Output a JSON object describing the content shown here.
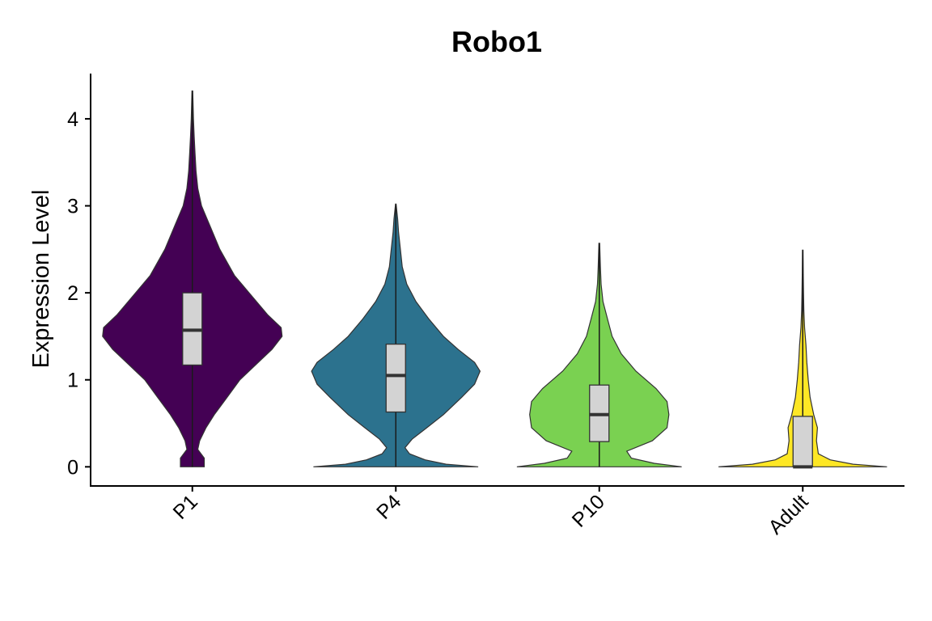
{
  "chart_data": {
    "type": "violin",
    "title": "Robo1",
    "xlabel": "",
    "ylabel": "Expression Level",
    "ylim": [
      -0.22,
      4.52
    ],
    "yticks": [
      0,
      1,
      2,
      3,
      4
    ],
    "categories": [
      "P1",
      "P4",
      "P10",
      "Adult"
    ],
    "grid": false,
    "legend": "none",
    "series": [
      {
        "category": "P1",
        "color": "#440154",
        "max": 4.32,
        "box": {
          "q1": 1.17,
          "median": 1.57,
          "q3": 2.0
        },
        "density": [
          [
            0,
            0.13
          ],
          [
            0.1,
            0.13
          ],
          [
            0.2,
            0.06
          ],
          [
            0.3,
            0.08
          ],
          [
            0.45,
            0.15
          ],
          [
            0.6,
            0.24
          ],
          [
            0.8,
            0.38
          ],
          [
            1.0,
            0.52
          ],
          [
            1.2,
            0.72
          ],
          [
            1.35,
            0.87
          ],
          [
            1.5,
            0.98
          ],
          [
            1.6,
            0.97
          ],
          [
            1.75,
            0.82
          ],
          [
            2.0,
            0.62
          ],
          [
            2.2,
            0.46
          ],
          [
            2.5,
            0.3
          ],
          [
            2.75,
            0.2
          ],
          [
            3.0,
            0.1
          ],
          [
            3.2,
            0.06
          ],
          [
            3.4,
            0.04
          ],
          [
            3.6,
            0.03
          ],
          [
            3.8,
            0.02
          ],
          [
            4.0,
            0.012
          ],
          [
            4.32,
            0.004
          ]
        ]
      },
      {
        "category": "P4",
        "color": "#2c728e",
        "max": 3.02,
        "box": {
          "q1": 0.63,
          "median": 1.05,
          "q3": 1.41
        },
        "density": [
          [
            0,
            0.9
          ],
          [
            0.03,
            0.55
          ],
          [
            0.08,
            0.32
          ],
          [
            0.15,
            0.15
          ],
          [
            0.22,
            0.1
          ],
          [
            0.32,
            0.18
          ],
          [
            0.45,
            0.34
          ],
          [
            0.6,
            0.52
          ],
          [
            0.8,
            0.72
          ],
          [
            0.95,
            0.86
          ],
          [
            1.1,
            0.92
          ],
          [
            1.2,
            0.86
          ],
          [
            1.35,
            0.68
          ],
          [
            1.5,
            0.52
          ],
          [
            1.7,
            0.36
          ],
          [
            1.9,
            0.22
          ],
          [
            2.1,
            0.12
          ],
          [
            2.3,
            0.07
          ],
          [
            2.5,
            0.05
          ],
          [
            2.7,
            0.03
          ],
          [
            2.85,
            0.02
          ],
          [
            3.02,
            0.003
          ]
        ]
      },
      {
        "category": "P10",
        "color": "#7ad151",
        "max": 2.57,
        "box": {
          "q1": 0.29,
          "median": 0.6,
          "q3": 0.94
        },
        "density": [
          [
            0,
            0.9
          ],
          [
            0.04,
            0.6
          ],
          [
            0.1,
            0.35
          ],
          [
            0.18,
            0.3
          ],
          [
            0.3,
            0.58
          ],
          [
            0.45,
            0.74
          ],
          [
            0.6,
            0.76
          ],
          [
            0.75,
            0.74
          ],
          [
            0.9,
            0.62
          ],
          [
            1.1,
            0.4
          ],
          [
            1.3,
            0.24
          ],
          [
            1.5,
            0.14
          ],
          [
            1.7,
            0.09
          ],
          [
            1.9,
            0.04
          ],
          [
            2.1,
            0.02
          ],
          [
            2.3,
            0.012
          ],
          [
            2.57,
            0.004
          ]
        ]
      },
      {
        "category": "Adult",
        "color": "#fde725",
        "max": 2.49,
        "box": {
          "q1": 0.0,
          "median": 0.0,
          "q3": 0.58
        },
        "density": [
          [
            0,
            0.92
          ],
          [
            0.03,
            0.55
          ],
          [
            0.08,
            0.3
          ],
          [
            0.15,
            0.17
          ],
          [
            0.3,
            0.15
          ],
          [
            0.45,
            0.16
          ],
          [
            0.6,
            0.12
          ],
          [
            0.8,
            0.08
          ],
          [
            1.0,
            0.06
          ],
          [
            1.2,
            0.045
          ],
          [
            1.4,
            0.035
          ],
          [
            1.6,
            0.02
          ],
          [
            1.8,
            0.012
          ],
          [
            2.0,
            0.008
          ],
          [
            2.2,
            0.006
          ],
          [
            2.49,
            0.003
          ]
        ]
      }
    ]
  }
}
